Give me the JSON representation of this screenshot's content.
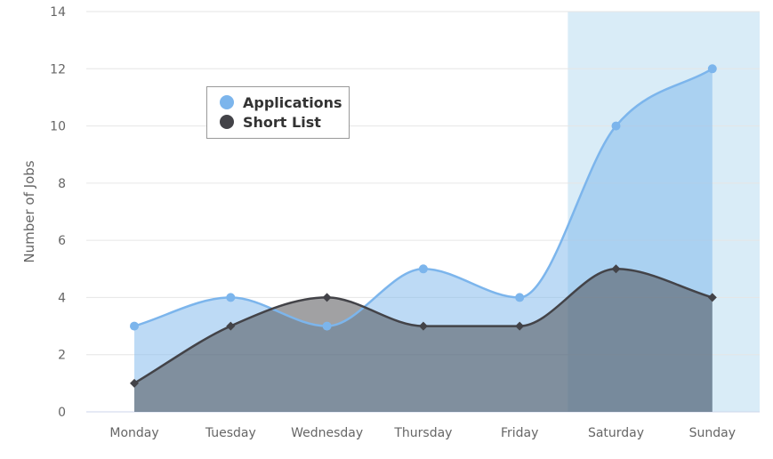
{
  "chart_data": {
    "type": "area",
    "categories": [
      "Monday",
      "Tuesday",
      "Wednesday",
      "Thursday",
      "Friday",
      "Saturday",
      "Sunday"
    ],
    "ylabel": "Number of Jobs",
    "ylim": [
      0,
      14
    ],
    "yticks": [
      0,
      2,
      4,
      6,
      8,
      10,
      12,
      14
    ],
    "grid": true,
    "legend_position": "top-left",
    "highlight_categories": [
      "Saturday",
      "Sunday"
    ],
    "highlight_color": "#d9ecf7",
    "series": [
      {
        "name": "Applications",
        "values": [
          3,
          4,
          3,
          5,
          4,
          10,
          12
        ],
        "color": "#7cb5ec",
        "fill": "#7cb5ec",
        "fill_opacity": 0.5,
        "marker": "circle"
      },
      {
        "name": "Short List",
        "values": [
          1,
          3,
          4,
          3,
          3,
          5,
          4
        ],
        "color": "#434348",
        "fill": "#434348",
        "fill_opacity": 0.5,
        "marker": "diamond"
      }
    ]
  }
}
